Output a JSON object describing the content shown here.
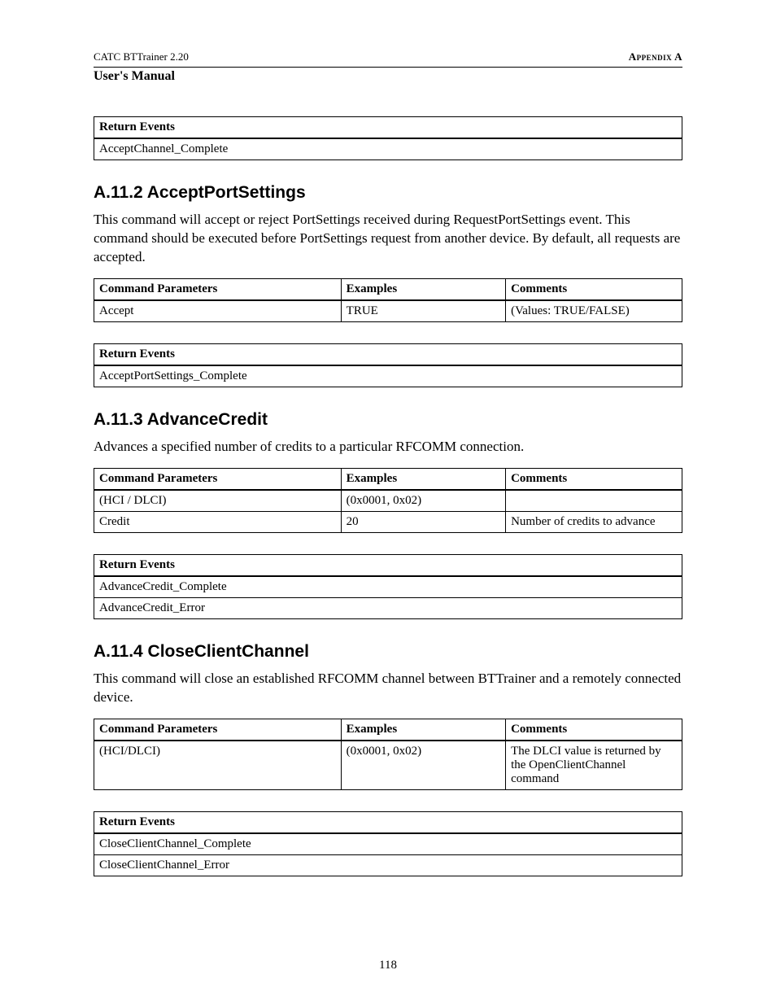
{
  "header": {
    "left": "CATC BTTrainer 2.20",
    "right": "Appendix A",
    "sub": "User's Manual"
  },
  "table_headers": {
    "command_parameters": "Command Parameters",
    "examples": "Examples",
    "comments": "Comments",
    "return_events": "Return Events"
  },
  "top_events_table": {
    "rows": [
      "AcceptChannel_Complete"
    ]
  },
  "sections": {
    "s1": {
      "title": "A.11.2  AcceptPortSettings",
      "body": "This command will accept or reject PortSettings received during RequestPortSettings event. This command should be executed before PortSettings request from another device. By default, all requests are accepted.",
      "params": [
        {
          "p": "Accept",
          "ex": "TRUE",
          "c": "(Values: TRUE/FALSE)"
        }
      ],
      "events": [
        "AcceptPortSettings_Complete"
      ]
    },
    "s2": {
      "title": "A.11.3  AdvanceCredit",
      "body": "Advances a specified number of credits to a particular RFCOMM connection.",
      "params": [
        {
          "p": "(HCI / DLCI)",
          "ex": "(0x0001, 0x02)",
          "c": ""
        },
        {
          "p": "Credit",
          "ex": "20",
          "c": "Number of credits to advance"
        }
      ],
      "events": [
        "AdvanceCredit_Complete",
        "AdvanceCredit_Error"
      ]
    },
    "s3": {
      "title": "A.11.4  CloseClientChannel",
      "body": "This command will close an established RFCOMM channel between BTTrainer and a remotely connected device.",
      "params": [
        {
          "p": "(HCI/DLCI)",
          "ex": "(0x0001, 0x02)",
          "c": "The DLCI value is returned by the OpenClientChannel command"
        }
      ],
      "events": [
        "CloseClientChannel_Complete",
        "CloseClientChannel_Error"
      ]
    }
  },
  "page_number": "118"
}
